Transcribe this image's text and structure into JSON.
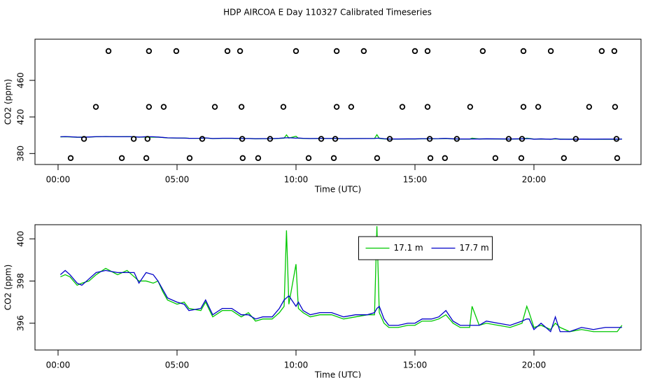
{
  "title": "HDP AIRCOA E  Day 110327  Calibrated Timeseries",
  "chart_data": [
    {
      "type": "line",
      "xlabel": "Time (UTC)",
      "ylabel": "CO2 (ppm)",
      "xlim": [
        -0.97,
        24.5
      ],
      "ylim": [
        368,
        505
      ],
      "xticks": [
        {
          "value": 0,
          "label": "00:00"
        },
        {
          "value": 5,
          "label": "05:00"
        },
        {
          "value": 10,
          "label": "10:00"
        },
        {
          "value": 15,
          "label": "15:00"
        },
        {
          "value": 20,
          "label": "20:00"
        }
      ],
      "yticks": [
        380,
        420,
        460
      ],
      "x": [
        0.1,
        0.3,
        0.5,
        0.8,
        1.0,
        1.3,
        1.6,
        2.0,
        2.5,
        2.9,
        3.2,
        3.4,
        3.7,
        4.0,
        4.2,
        4.4,
        4.6,
        5.0,
        5.3,
        5.5,
        6.0,
        6.2,
        6.5,
        6.9,
        7.3,
        7.7,
        8.0,
        8.3,
        8.6,
        9.0,
        9.3,
        9.5,
        9.6,
        9.7,
        10.0,
        10.1,
        10.3,
        10.6,
        11.0,
        11.5,
        12.0,
        12.5,
        13.0,
        13.3,
        13.4,
        13.5,
        13.7,
        13.9,
        14.3,
        14.7,
        15.0,
        15.3,
        15.7,
        16.0,
        16.3,
        16.6,
        16.9,
        17.3,
        17.4,
        17.7,
        18.0,
        18.5,
        19.0,
        19.5,
        19.7,
        19.8,
        20.0,
        20.3,
        20.7,
        20.9,
        21.1,
        21.5,
        22.0,
        22.5,
        23.0,
        23.5,
        23.7
      ],
      "series": [
        {
          "color": "#00c800",
          "values": [
            398.2,
            398.3,
            398.2,
            397.8,
            397.9,
            398.0,
            398.3,
            398.6,
            398.3,
            398.5,
            398.2,
            398.0,
            398.0,
            397.9,
            398.0,
            397.5,
            397.1,
            396.9,
            397.0,
            396.7,
            396.6,
            397.0,
            396.3,
            396.6,
            396.6,
            396.3,
            396.5,
            396.1,
            396.2,
            396.2,
            396.5,
            396.8,
            400.4,
            396.9,
            398.8,
            396.7,
            396.5,
            396.3,
            396.4,
            396.4,
            396.2,
            396.3,
            396.4,
            396.4,
            400.6,
            396.5,
            396.0,
            395.8,
            395.8,
            395.9,
            395.9,
            396.1,
            396.1,
            396.2,
            396.4,
            396.0,
            395.8,
            395.8,
            396.8,
            395.9,
            396.0,
            395.9,
            395.8,
            396.0,
            396.8,
            396.5,
            395.8,
            395.9,
            395.7,
            396.0,
            395.8,
            395.6,
            395.7,
            395.6,
            395.6,
            395.6,
            395.9
          ]
        },
        {
          "color": "#0000c8",
          "values": [
            398.3,
            398.5,
            398.3,
            397.9,
            397.8,
            398.1,
            398.4,
            398.5,
            398.4,
            398.4,
            398.4,
            397.9,
            398.4,
            398.3,
            398.0,
            397.6,
            397.2,
            397.0,
            396.9,
            396.6,
            396.7,
            397.1,
            396.4,
            396.7,
            396.7,
            396.4,
            396.4,
            396.2,
            396.3,
            396.3,
            396.7,
            397.1,
            397.2,
            397.3,
            396.8,
            397.0,
            396.6,
            396.4,
            396.5,
            396.5,
            396.3,
            396.4,
            396.4,
            396.5,
            396.7,
            396.8,
            396.2,
            395.9,
            395.9,
            396.0,
            396.0,
            396.2,
            396.2,
            396.3,
            396.6,
            396.1,
            395.9,
            395.9,
            395.9,
            395.9,
            396.1,
            396.0,
            395.9,
            396.1,
            396.2,
            396.2,
            395.7,
            396.0,
            395.6,
            396.3,
            395.6,
            395.6,
            395.8,
            395.7,
            395.8,
            395.8,
            395.8
          ]
        }
      ],
      "points": {
        "color": "#000000",
        "x": [
          2.12,
          3.82,
          4.97,
          7.12,
          7.65,
          10.0,
          11.71,
          12.85,
          15.0,
          15.53,
          17.85,
          19.56,
          20.71,
          22.85,
          23.38,
          1.59,
          3.82,
          4.44,
          6.59,
          7.71,
          9.47,
          11.71,
          12.32,
          14.47,
          15.53,
          17.32,
          19.56,
          20.18,
          22.32,
          23.41,
          1.09,
          3.18,
          3.76,
          6.06,
          7.74,
          8.91,
          11.06,
          11.65,
          13.94,
          15.62,
          16.76,
          18.94,
          19.5,
          21.76,
          23.47,
          0.53,
          2.68,
          3.71,
          5.53,
          7.76,
          8.41,
          10.53,
          11.59,
          13.41,
          15.65,
          16.26,
          18.38,
          19.47,
          21.26,
          23.5
        ],
        "y": [
          492,
          492,
          492,
          492,
          492,
          492,
          492,
          492,
          492,
          492,
          492,
          492,
          492,
          492,
          492,
          431,
          431,
          431,
          431,
          431,
          431,
          431,
          431,
          431,
          431,
          431,
          431,
          431,
          431,
          431,
          396,
          396,
          396,
          396,
          396,
          396,
          396,
          396,
          396,
          396,
          396,
          396,
          396,
          396,
          396,
          375,
          375,
          375,
          375,
          375,
          375,
          375,
          375,
          375,
          375,
          375,
          375,
          375,
          375,
          375
        ]
      }
    },
    {
      "type": "line",
      "xlabel": "Time (UTC)",
      "ylabel": "CO2 (ppm)",
      "legend": "top",
      "xlim": [
        -0.97,
        24.5
      ],
      "ylim": [
        394.73,
        400.67
      ],
      "xticks": [
        {
          "value": 0,
          "label": "00:00"
        },
        {
          "value": 5,
          "label": "05:00"
        },
        {
          "value": 10,
          "label": "10:00"
        },
        {
          "value": 15,
          "label": "15:00"
        },
        {
          "value": 20,
          "label": "20:00"
        }
      ],
      "yticks": [
        396,
        398,
        400
      ],
      "x": [
        0.1,
        0.3,
        0.5,
        0.8,
        1.0,
        1.3,
        1.6,
        2.0,
        2.5,
        2.9,
        3.2,
        3.4,
        3.7,
        4.0,
        4.2,
        4.4,
        4.6,
        5.0,
        5.3,
        5.5,
        6.0,
        6.2,
        6.5,
        6.9,
        7.3,
        7.7,
        8.0,
        8.3,
        8.6,
        9.0,
        9.3,
        9.5,
        9.6,
        9.7,
        10.0,
        10.1,
        10.3,
        10.6,
        11.0,
        11.5,
        12.0,
        12.5,
        13.0,
        13.3,
        13.4,
        13.5,
        13.7,
        13.9,
        14.3,
        14.7,
        15.0,
        15.3,
        15.7,
        16.0,
        16.3,
        16.6,
        16.9,
        17.3,
        17.4,
        17.7,
        18.0,
        18.5,
        19.0,
        19.5,
        19.7,
        19.8,
        20.0,
        20.3,
        20.7,
        20.9,
        21.1,
        21.5,
        22.0,
        22.5,
        23.0,
        23.5,
        23.7
      ],
      "series": [
        {
          "name": "17.1 m",
          "color": "#00c800",
          "values": [
            398.2,
            398.3,
            398.2,
            397.8,
            397.9,
            398.0,
            398.3,
            398.6,
            398.3,
            398.5,
            398.2,
            398.0,
            398.0,
            397.9,
            398.0,
            397.5,
            397.1,
            396.9,
            397.0,
            396.7,
            396.6,
            397.0,
            396.3,
            396.6,
            396.6,
            396.3,
            396.5,
            396.1,
            396.2,
            396.2,
            396.5,
            396.8,
            400.4,
            396.9,
            398.8,
            396.7,
            396.5,
            396.3,
            396.4,
            396.4,
            396.2,
            396.3,
            396.4,
            396.4,
            400.6,
            396.5,
            396.0,
            395.8,
            395.8,
            395.9,
            395.9,
            396.1,
            396.1,
            396.2,
            396.4,
            396.0,
            395.8,
            395.8,
            396.8,
            395.9,
            396.0,
            395.9,
            395.8,
            396.0,
            396.8,
            396.5,
            395.8,
            395.9,
            395.7,
            396.0,
            395.8,
            395.6,
            395.7,
            395.6,
            395.6,
            395.6,
            395.9
          ]
        },
        {
          "name": "17.7 m",
          "color": "#0000c8",
          "values": [
            398.3,
            398.5,
            398.3,
            397.9,
            397.8,
            398.1,
            398.4,
            398.5,
            398.4,
            398.4,
            398.4,
            397.9,
            398.4,
            398.3,
            398.0,
            397.6,
            397.2,
            397.0,
            396.9,
            396.6,
            396.7,
            397.1,
            396.4,
            396.7,
            396.7,
            396.4,
            396.4,
            396.2,
            396.3,
            396.3,
            396.7,
            397.1,
            397.2,
            397.3,
            396.8,
            397.0,
            396.6,
            396.4,
            396.5,
            396.5,
            396.3,
            396.4,
            396.4,
            396.5,
            396.7,
            396.8,
            396.2,
            395.9,
            395.9,
            396.0,
            396.0,
            396.2,
            396.2,
            396.3,
            396.6,
            396.1,
            395.9,
            395.9,
            395.9,
            395.9,
            396.1,
            396.0,
            395.9,
            396.1,
            396.2,
            396.2,
            395.7,
            396.0,
            395.6,
            396.3,
            395.6,
            395.6,
            395.8,
            395.7,
            395.8,
            395.8,
            395.8
          ]
        }
      ]
    }
  ]
}
